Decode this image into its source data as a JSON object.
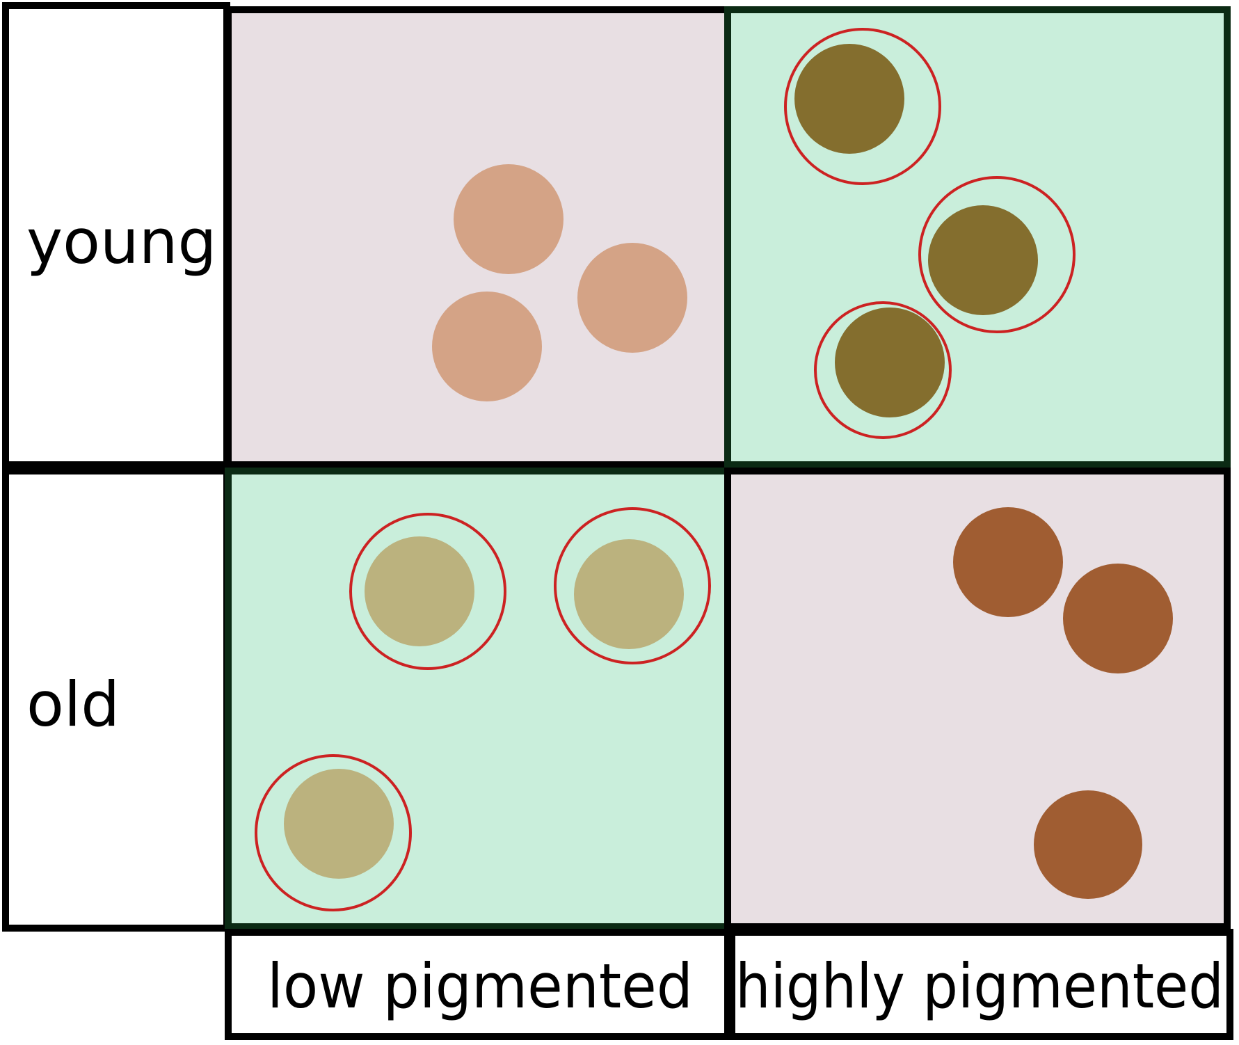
{
  "rows": [
    {
      "label": "young"
    },
    {
      "label": "old"
    }
  ],
  "columns": [
    {
      "label": "low pigmented"
    },
    {
      "label": "highly pigmented"
    }
  ],
  "colors": {
    "border": "#000000",
    "pink_background": "#e8dfe3",
    "green_background": "#c9eedb",
    "highlight_ring": "#cc2222",
    "young_low_cell": "#d4a386",
    "young_high_cell": "#846e2e",
    "old_low_cell": "#bbb27e",
    "old_high_cell": "#a05d32"
  },
  "quadrants": [
    {
      "row": "young",
      "column": "low pigmented",
      "background": "pink",
      "cell_count": 3,
      "highlighted": false
    },
    {
      "row": "young",
      "column": "highly pigmented",
      "background": "green",
      "cell_count": 3,
      "highlighted": true
    },
    {
      "row": "old",
      "column": "low pigmented",
      "background": "green",
      "cell_count": 3,
      "highlighted": true
    },
    {
      "row": "old",
      "column": "highly pigmented",
      "background": "pink",
      "cell_count": 3,
      "highlighted": false
    }
  ]
}
